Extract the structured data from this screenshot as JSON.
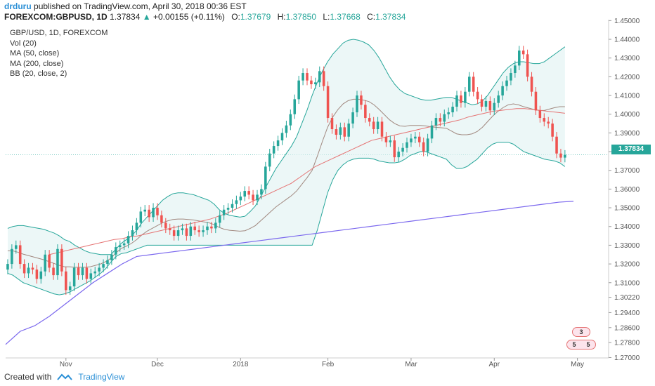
{
  "header": {
    "user": "drduru",
    "published": "published on TradingView.com, April 30, 2018 00:36 EST",
    "symbol": "FOREXCOM:GBPUSD, 1D",
    "last": "1.37834",
    "change": "+0.00155 (+0.11%)",
    "o_label": "O:",
    "o_value": "1.37679",
    "h_label": "H:",
    "h_value": "1.37850",
    "l_label": "L:",
    "l_value": "1.37668",
    "c_label": "C:",
    "c_value": "1.37834"
  },
  "legend": [
    "GBP/USD, 1D, FOREXCOM",
    "Vol (20)",
    "MA (50, close)",
    "MA (200, close)",
    "BB (20, close, 2)"
  ],
  "footer": {
    "created": "Created with",
    "brand": "TradingView"
  },
  "price_tag": "1.37834",
  "events": {
    "top": "3",
    "bottom_left": "5",
    "bottom_right": "5"
  },
  "colors": {
    "up": "#26a69a",
    "down": "#ef5350",
    "ma50": "#e57373",
    "ma200": "#7b68ee",
    "bb": "#26a69a",
    "bb_fill": "#e0f2f1",
    "bb_mid": "#a1887f",
    "link": "#2a8fd6"
  },
  "chart_data": {
    "type": "candlestick",
    "title": "GBP/USD, 1D, FOREXCOM",
    "x_tick_labels": [
      "Nov",
      "Dec",
      "2018",
      "Feb",
      "Mar",
      "Apr",
      "May"
    ],
    "x_tick_index": [
      14,
      36,
      56,
      77,
      97,
      117,
      137
    ],
    "y_ticks": [
      "1.45000",
      "1.44000",
      "1.43000",
      "1.42000",
      "1.41000",
      "1.40000",
      "1.39000",
      "1.38000",
      "1.37000",
      "1.36000",
      "1.35000",
      "1.34000",
      "1.33000",
      "1.32000",
      "1.31000",
      "1.30220",
      "1.29400",
      "1.28600",
      "1.27800",
      "1.27000"
    ],
    "y_tick_values": [
      1.45,
      1.44,
      1.43,
      1.42,
      1.41,
      1.4,
      1.39,
      1.38,
      1.37,
      1.36,
      1.35,
      1.34,
      1.33,
      1.32,
      1.31,
      1.3022,
      1.294,
      1.286,
      1.278,
      1.27
    ],
    "ylim": [
      1.2698,
      1.4505
    ],
    "close": [
      1.32,
      1.328,
      1.33,
      1.32,
      1.315,
      1.318,
      1.317,
      1.312,
      1.316,
      1.325,
      1.318,
      1.314,
      1.328,
      1.316,
      1.306,
      1.308,
      1.318,
      1.314,
      1.318,
      1.312,
      1.315,
      1.316,
      1.318,
      1.32,
      1.322,
      1.325,
      1.329,
      1.33,
      1.331,
      1.335,
      1.338,
      1.342,
      1.348,
      1.349,
      1.345,
      1.35,
      1.346,
      1.342,
      1.339,
      1.338,
      1.335,
      1.338,
      1.339,
      1.335,
      1.34,
      1.338,
      1.337,
      1.338,
      1.34,
      1.339,
      1.342,
      1.346,
      1.349,
      1.35,
      1.352,
      1.354,
      1.356,
      1.359,
      1.357,
      1.354,
      1.357,
      1.36,
      1.372,
      1.379,
      1.383,
      1.386,
      1.39,
      1.394,
      1.4,
      1.408,
      1.418,
      1.422,
      1.418,
      1.416,
      1.417,
      1.423,
      1.415,
      1.398,
      1.392,
      1.389,
      1.393,
      1.388,
      1.395,
      1.401,
      1.41,
      1.405,
      1.398,
      1.396,
      1.392,
      1.396,
      1.388,
      1.385,
      1.386,
      1.377,
      1.38,
      1.382,
      1.385,
      1.387,
      1.388,
      1.385,
      1.38,
      1.387,
      1.394,
      1.398,
      1.396,
      1.4,
      1.401,
      1.404,
      1.41,
      1.406,
      1.412,
      1.42,
      1.412,
      1.408,
      1.404,
      1.407,
      1.402,
      1.406,
      1.41,
      1.415,
      1.418,
      1.422,
      1.426,
      1.434,
      1.432,
      1.42,
      1.412,
      1.402,
      1.398,
      1.396,
      1.395,
      1.388,
      1.379,
      1.3768,
      1.3783
    ],
    "bb_upper": [
      1.339,
      1.34,
      1.3405,
      1.3405,
      1.34,
      1.3395,
      1.339,
      1.3385,
      1.3375,
      1.3365,
      1.335,
      1.333,
      1.332,
      1.33,
      1.3285,
      1.327,
      1.326,
      1.3255,
      1.325,
      1.325,
      1.325,
      1.328,
      1.331,
      1.333,
      1.335,
      1.338,
      1.342,
      1.345,
      1.348,
      1.351,
      1.354,
      1.356,
      1.3575,
      1.358,
      1.358,
      1.3575,
      1.357,
      1.356,
      1.355,
      1.354,
      1.352,
      1.349,
      1.347,
      1.346,
      1.3455,
      1.345,
      1.3455,
      1.348,
      1.351,
      1.356,
      1.361,
      1.366,
      1.371,
      1.375,
      1.379,
      1.383,
      1.388,
      1.395,
      1.402,
      1.41,
      1.417,
      1.423,
      1.428,
      1.432,
      1.435,
      1.438,
      1.4395,
      1.44,
      1.4395,
      1.4385,
      1.437,
      1.434,
      1.43,
      1.425,
      1.42,
      1.416,
      1.413,
      1.411,
      1.41,
      1.409,
      1.408,
      1.4075,
      1.4075,
      1.408,
      1.4085,
      1.409,
      1.409,
      1.408,
      1.407,
      1.406,
      1.405,
      1.4055,
      1.407,
      1.41,
      1.414,
      1.418,
      1.422,
      1.425,
      1.427,
      1.428,
      1.428,
      1.4275,
      1.427,
      1.427,
      1.428,
      1.43,
      1.432,
      1.434,
      1.436,
      1.437,
      1.4375,
      1.4375,
      1.4375,
      1.4375,
      1.4375,
      1.438,
      1.4385,
      1.439,
      1.4395
    ],
    "bb_lower": [
      1.315,
      1.314,
      1.312,
      1.31,
      1.309,
      1.308,
      1.307,
      1.306,
      1.305,
      1.304,
      1.3035,
      1.304,
      1.305,
      1.3065,
      1.308,
      1.3095,
      1.311,
      1.313,
      1.315,
      1.3175,
      1.321,
      1.324,
      1.3255,
      1.326,
      1.327,
      1.328,
      1.329,
      1.33,
      1.33,
      1.33,
      1.33,
      1.33,
      1.33,
      1.33,
      1.33,
      1.33,
      1.33,
      1.33,
      1.33,
      1.33,
      1.33,
      1.33,
      1.33,
      1.33,
      1.33,
      1.33,
      1.33,
      1.33,
      1.33,
      1.33,
      1.33,
      1.33,
      1.33,
      1.33,
      1.33,
      1.33,
      1.33,
      1.33,
      1.33,
      1.33,
      1.338,
      1.348,
      1.358,
      1.365,
      1.37,
      1.373,
      1.375,
      1.376,
      1.3765,
      1.3765,
      1.3765,
      1.376,
      1.375,
      1.3745,
      1.374,
      1.374,
      1.3745,
      1.376,
      1.378,
      1.379,
      1.38,
      1.38,
      1.379,
      1.378,
      1.377,
      1.376,
      1.373,
      1.371,
      1.371,
      1.372,
      1.374,
      1.376,
      1.379,
      1.382,
      1.384,
      1.385,
      1.385,
      1.385,
      1.384,
      1.382,
      1.38,
      1.379,
      1.378,
      1.377,
      1.376,
      1.3755,
      1.375,
      1.374,
      1.372
    ],
    "ma50": [
      1.325,
      1.326,
      1.327,
      1.328,
      1.329,
      1.33,
      1.331,
      1.332,
      1.333,
      1.3335,
      1.3345,
      1.335,
      1.336,
      1.337,
      1.338,
      1.339,
      1.34,
      1.341,
      1.342,
      1.343,
      1.344,
      1.3455,
      1.347,
      1.349,
      1.351,
      1.353,
      1.355,
      1.357,
      1.359,
      1.361,
      1.363,
      1.366,
      1.369,
      1.372,
      1.374,
      1.376,
      1.378,
      1.38,
      1.382,
      1.384,
      1.386,
      1.387,
      1.388,
      1.389,
      1.39,
      1.391,
      1.392,
      1.393,
      1.394,
      1.395,
      1.396,
      1.397,
      1.3985,
      1.3995,
      1.4005,
      1.4015,
      1.402,
      1.4025,
      1.403,
      1.403,
      1.4025,
      1.402,
      1.4015,
      1.401,
      1.4005
    ],
    "ma200": [
      1.324,
      1.325,
      1.326,
      1.327,
      1.328,
      1.329,
      1.33,
      1.331,
      1.332,
      1.333,
      1.334,
      1.335,
      1.336,
      1.337,
      1.338,
      1.339,
      1.34,
      1.341,
      1.342,
      1.343,
      1.344,
      1.345,
      1.346,
      1.347,
      1.348,
      1.349,
      1.35,
      1.351,
      1.352,
      1.353,
      1.3535
    ],
    "ma200_start": [
      1.277,
      1.284,
      1.287,
      1.292,
      1.298,
      1.304,
      1.31,
      1.315,
      1.32
    ]
  }
}
